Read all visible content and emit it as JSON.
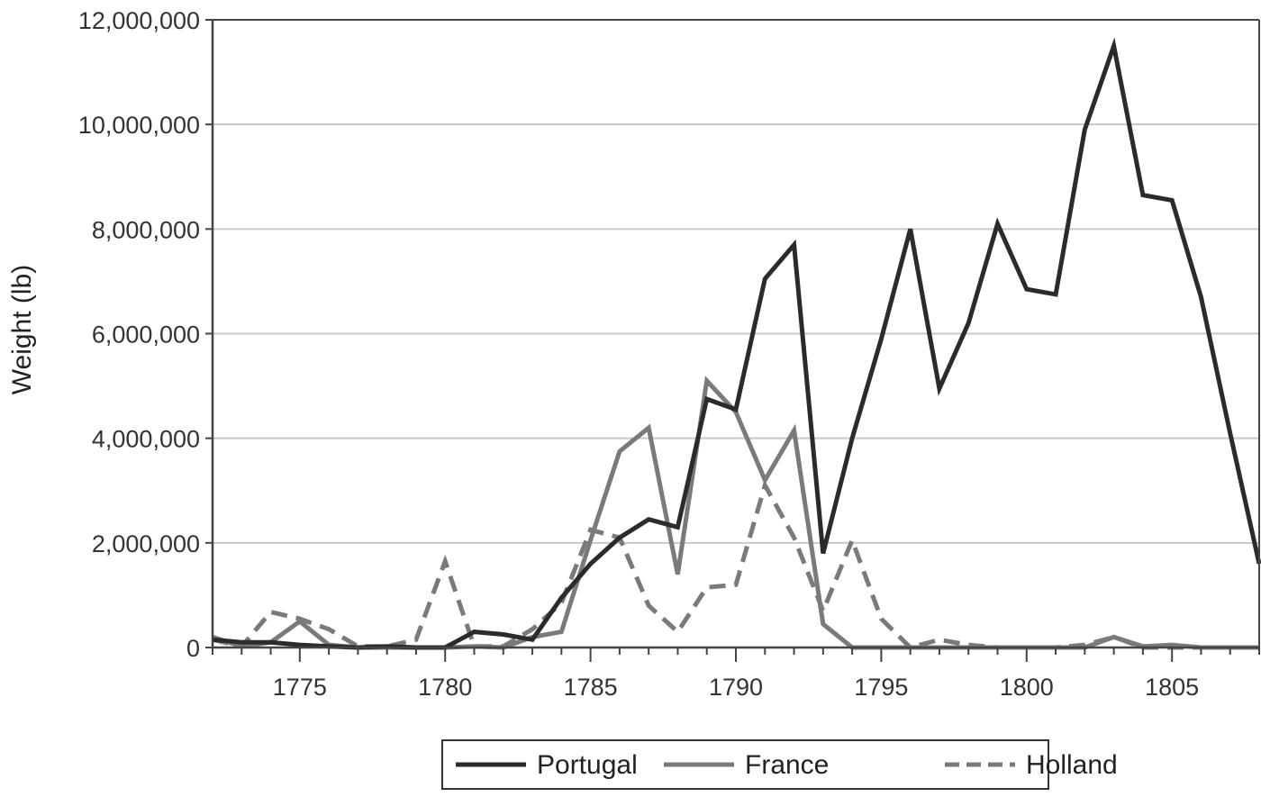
{
  "chart_data": {
    "type": "line",
    "title": "",
    "xlabel": "",
    "ylabel": "Weight (lb)",
    "xlim": [
      1772,
      1808
    ],
    "ylim": [
      0,
      12000000
    ],
    "grid": {
      "y": true,
      "x": false
    },
    "legend_position": "bottom",
    "x_ticks": [
      "1775",
      "1780",
      "1785",
      "1790",
      "1795",
      "1800",
      "1805"
    ],
    "y_ticks": [
      "0",
      "2,000,000",
      "4,000,000",
      "6,000,000",
      "8,000,000",
      "10,000,000",
      "12,000,000"
    ],
    "x": [
      1772,
      1773,
      1774,
      1775,
      1776,
      1777,
      1778,
      1779,
      1780,
      1781,
      1782,
      1783,
      1784,
      1785,
      1786,
      1787,
      1788,
      1789,
      1790,
      1791,
      1792,
      1793,
      1794,
      1795,
      1796,
      1797,
      1798,
      1799,
      1800,
      1801,
      1802,
      1803,
      1804,
      1805,
      1806,
      1807,
      1808
    ],
    "series": [
      {
        "name": "Portugal",
        "color": "#2b2b2b",
        "dash": "solid",
        "values": [
          150000,
          100000,
          100000,
          50000,
          20000,
          0,
          20000,
          0,
          0,
          300000,
          250000,
          150000,
          950000,
          1600000,
          2100000,
          2450000,
          2300000,
          4750000,
          4550000,
          7050000,
          7700000,
          1800000,
          4000000,
          5900000,
          8000000,
          4950000,
          6200000,
          8100000,
          6850000,
          6750000,
          9900000,
          11500000,
          8650000,
          8550000,
          6700000,
          4100000,
          1600000
        ]
      },
      {
        "name": "France",
        "color": "#7a7a7a",
        "dash": "solid",
        "values": [
          200000,
          20000,
          100000,
          500000,
          50000,
          0,
          0,
          0,
          0,
          20000,
          0,
          200000,
          300000,
          2050000,
          3750000,
          4200000,
          1400000,
          5100000,
          4500000,
          3200000,
          4150000,
          450000,
          0,
          0,
          0,
          0,
          0,
          0,
          0,
          0,
          0,
          200000,
          20000,
          50000,
          0,
          0,
          0
        ]
      },
      {
        "name": "Holland",
        "color": "#7a7a7a",
        "dash": "dashed",
        "values": [
          150000,
          20000,
          680000,
          550000,
          350000,
          20000,
          20000,
          150000,
          1650000,
          20000,
          20000,
          350000,
          850000,
          2250000,
          2100000,
          800000,
          300000,
          1150000,
          1200000,
          3100000,
          2100000,
          700000,
          2050000,
          550000,
          0,
          150000,
          50000,
          0,
          0,
          0,
          50000,
          200000,
          0,
          0,
          0,
          0,
          0
        ]
      }
    ]
  },
  "legend": {
    "items": [
      {
        "label": "Portugal"
      },
      {
        "label": "France"
      },
      {
        "label": "Holland"
      }
    ]
  }
}
